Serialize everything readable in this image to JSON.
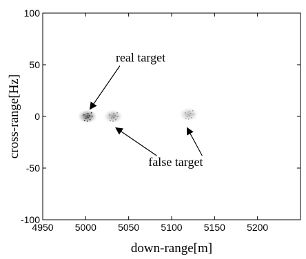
{
  "chart_data": {
    "type": "heatmap",
    "title": "",
    "xlabel": "down-range[m]",
    "ylabel": "cross-range[Hz]",
    "xlim": [
      4950,
      5250
    ],
    "ylim": [
      -100,
      100
    ],
    "xticks": [
      4950,
      5000,
      5050,
      5100,
      5150,
      5200
    ],
    "yticks": [
      -100,
      -50,
      0,
      50,
      100
    ],
    "grid": false,
    "blobs": [
      {
        "x": 5002,
        "y": 0,
        "intensity": 1.0
      },
      {
        "x": 5032,
        "y": 0,
        "intensity": 0.6
      },
      {
        "x": 5120,
        "y": 2,
        "intensity": 0.45
      }
    ],
    "annotations": [
      {
        "text": "real target",
        "text_x": 5035,
        "text_y": 53,
        "arrow_to": [
          5005,
          7
        ]
      },
      {
        "text": "false target",
        "text_x": 5073,
        "text_y": -48,
        "arrow_tips": [
          [
            5035,
            -11
          ],
          [
            5118,
            -11
          ]
        ]
      }
    ]
  }
}
